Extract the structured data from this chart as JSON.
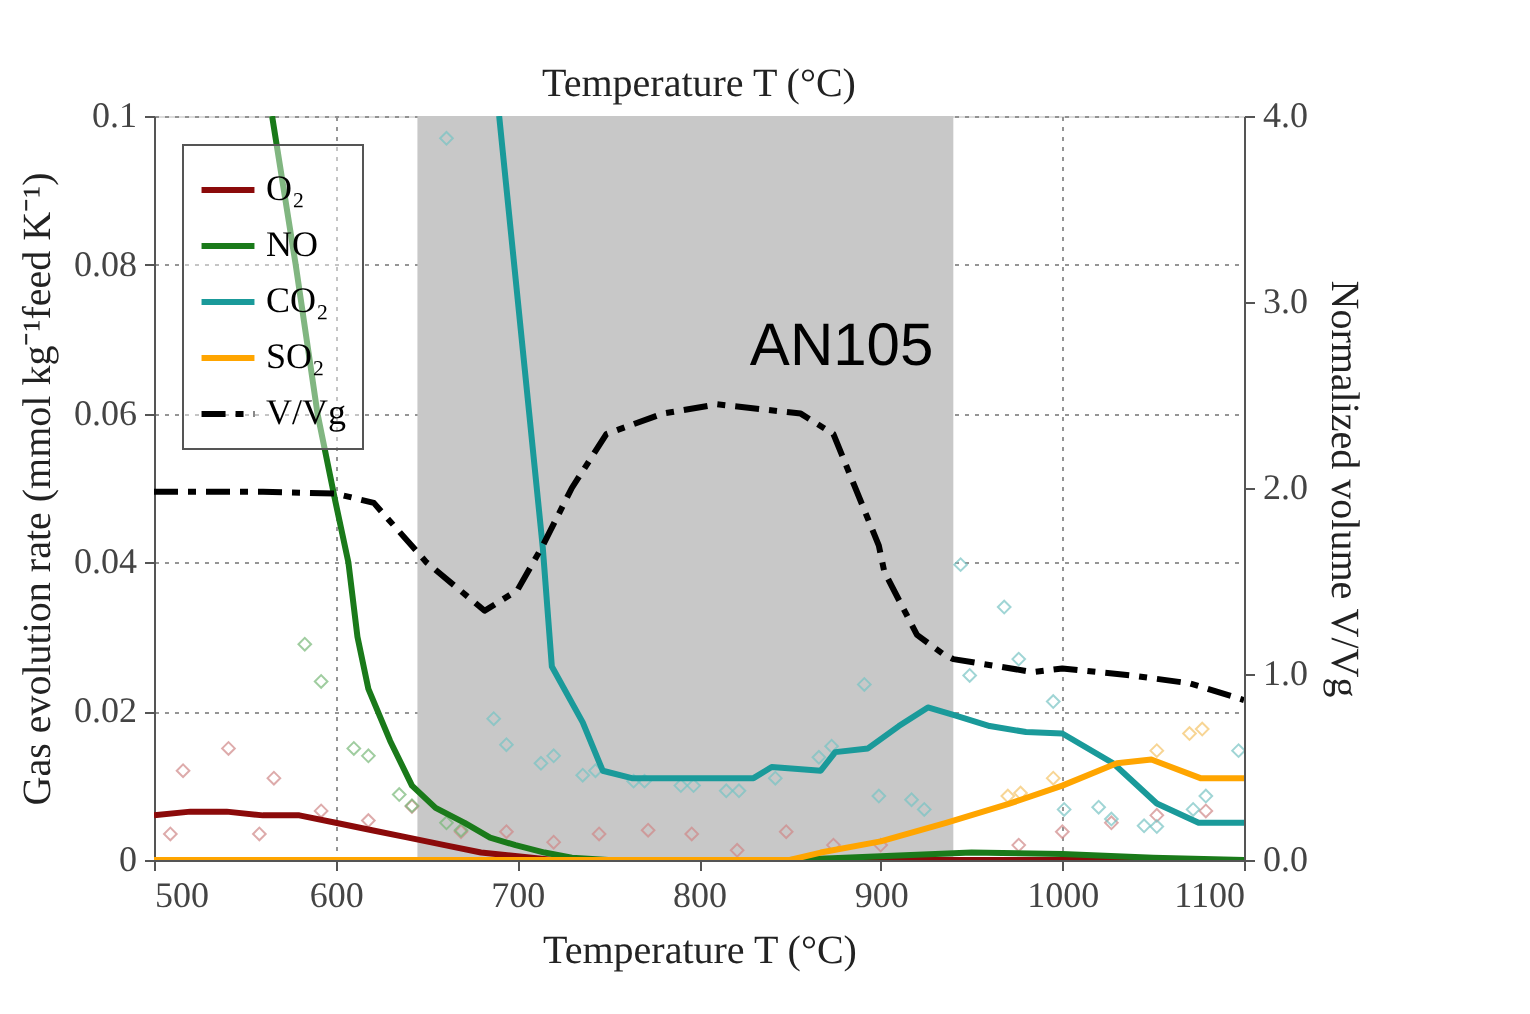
{
  "chart_data": {
    "type": "line",
    "xlabel": "Temperature T (°C)",
    "ylabel": "Gas evolution rate (mmol kg⁻¹feed K⁻¹)",
    "y2label": "Normalized volume V/Vg",
    "xlim": [
      500,
      1100
    ],
    "xticks": [
      500,
      600,
      700,
      800,
      900,
      1000,
      1100
    ],
    "ylim": [
      0,
      0.1
    ],
    "yticks": [
      0,
      0.02,
      0.04,
      0.06,
      0.08,
      0.1
    ],
    "y2lim": [
      0,
      4
    ],
    "y2ticks": [
      {
        "value": 0,
        "label": "0.0"
      },
      {
        "value": 1,
        "label": "1.0"
      },
      {
        "value": 2,
        "label": "2.0"
      },
      {
        "value": 3,
        "label": "3.0"
      },
      {
        "value": 4,
        "label": "4.0"
      }
    ],
    "grid": true,
    "legend": "top left",
    "bands": [
      {
        "axis": "x",
        "from": 645,
        "to": 940,
        "label": "AN105",
        "color": "#c8c8c8"
      }
    ],
    "annotations": [
      "Temperature T (°C)"
    ],
    "series": [
      {
        "type": "scatter",
        "marker": "diamond",
        "color": "#d08888",
        "x": [
          509,
          516,
          541,
          558,
          566,
          592,
          618,
          642,
          669,
          694,
          720,
          745,
          772,
          796,
          821,
          848,
          874,
          900,
          976,
          1000,
          1027,
          1052,
          1079
        ],
        "values": [
          0.0035,
          0.012,
          0.015,
          0.0035,
          0.011,
          0.0066,
          0.0053,
          0.0072,
          0.0038,
          0.0038,
          0.0024,
          0.0035,
          0.004,
          0.0035,
          0.0013,
          0.0038,
          0.002,
          0.002,
          0.002,
          0.0038,
          0.005,
          0.006,
          0.0066
        ]
      },
      {
        "type": "scatter",
        "marker": "diamond",
        "color": "#78b878",
        "x": [
          583,
          592,
          610,
          618,
          635,
          642,
          661,
          669
        ],
        "values": [
          0.029,
          0.024,
          0.015,
          0.014,
          0.0088,
          0.0073,
          0.005,
          0.004
        ]
      },
      {
        "type": "scatter",
        "marker": "diamond",
        "color": "#78c4c4",
        "x": [
          661,
          687,
          694,
          713,
          720,
          736,
          743,
          764,
          770,
          790,
          797,
          815,
          822,
          842,
          866,
          873,
          891,
          899,
          917,
          924,
          944,
          949,
          968,
          976,
          995,
          1001,
          1020,
          1027,
          1045,
          1052,
          1072,
          1079,
          1097
        ],
        "values": [
          0.097,
          0.019,
          0.0155,
          0.013,
          0.014,
          0.0114,
          0.012,
          0.0106,
          0.0106,
          0.01,
          0.01,
          0.0093,
          0.0093,
          0.011,
          0.0138,
          0.0153,
          0.0236,
          0.0086,
          0.0081,
          0.0068,
          0.0397,
          0.0248,
          0.034,
          0.027,
          0.0213,
          0.0068,
          0.0071,
          0.0055,
          0.0046,
          0.0045,
          0.0068,
          0.0086,
          0.0147
        ]
      },
      {
        "type": "scatter",
        "marker": "diamond",
        "color": "#f5c468",
        "x": [
          970,
          977,
          995,
          1052,
          1070,
          1077
        ],
        "values": [
          0.0086,
          0.009,
          0.011,
          0.0147,
          0.017,
          0.0176
        ]
      },
      {
        "name": "O₂",
        "color": "#8b0a0a",
        "line_style": "solid",
        "x": [
          500,
          520,
          540,
          560,
          580,
          600,
          620,
          640,
          660,
          680,
          700,
          720,
          800,
          900,
          1000,
          1100
        ],
        "values": [
          0.006,
          0.0065,
          0.0065,
          0.006,
          0.006,
          0.005,
          0.004,
          0.003,
          0.002,
          0.001,
          0.0005,
          0,
          0,
          0,
          0,
          0
        ]
      },
      {
        "name": "NO",
        "color": "#1a7a1a",
        "line_style": "solid",
        "x": [
          565,
          578,
          590,
          600,
          607,
          612,
          618,
          630,
          642,
          655,
          671,
          685,
          699,
          715,
          730,
          750,
          800,
          850,
          900,
          950,
          1000,
          1050,
          1100
        ],
        "values": [
          0.1,
          0.08,
          0.06,
          0.048,
          0.04,
          0.03,
          0.023,
          0.016,
          0.01,
          0.007,
          0.005,
          0.003,
          0.002,
          0.001,
          0.0003,
          0,
          0,
          0,
          0.0005,
          0.001,
          0.0008,
          0.0003,
          0
        ]
      },
      {
        "name": "CO₂",
        "color": "#1a9a9a",
        "line_style": "solid",
        "x": [
          690,
          714,
          719,
          736,
          747,
          763,
          800,
          830,
          840,
          867,
          875,
          893,
          910,
          926,
          940,
          960,
          980,
          1000,
          1028,
          1052,
          1075,
          1100
        ],
        "values": [
          0.1,
          0.042,
          0.026,
          0.0185,
          0.012,
          0.011,
          0.011,
          0.011,
          0.0125,
          0.012,
          0.0145,
          0.015,
          0.018,
          0.0205,
          0.0195,
          0.018,
          0.0172,
          0.017,
          0.013,
          0.0076,
          0.005,
          0.005
        ]
      },
      {
        "name": "SO₂",
        "color": "#ffa500",
        "line_style": "solid",
        "x": [
          500,
          850,
          867,
          900,
          936,
          970,
          1000,
          1030,
          1049,
          1076,
          1100
        ],
        "values": [
          0,
          0,
          0.001,
          0.0025,
          0.005,
          0.0075,
          0.01,
          0.013,
          0.0135,
          0.011,
          0.011
        ]
      },
      {
        "name": "V/Vg",
        "color": "#000000",
        "line_style": "dashed",
        "axis": "y2",
        "x": [
          500,
          560,
          600,
          621,
          650,
          682,
          700,
          714,
          730,
          749,
          780,
          810,
          856,
          874,
          899,
          902,
          920,
          934,
          940,
          984,
          1000,
          1040,
          1070,
          1100
        ],
        "values": [
          1.98,
          1.98,
          1.97,
          1.92,
          1.6,
          1.34,
          1.45,
          1.69,
          2.0,
          2.29,
          2.4,
          2.45,
          2.4,
          2.29,
          1.69,
          1.55,
          1.21,
          1.11,
          1.08,
          1.01,
          1.03,
          0.99,
          0.95,
          0.86
        ]
      }
    ]
  }
}
